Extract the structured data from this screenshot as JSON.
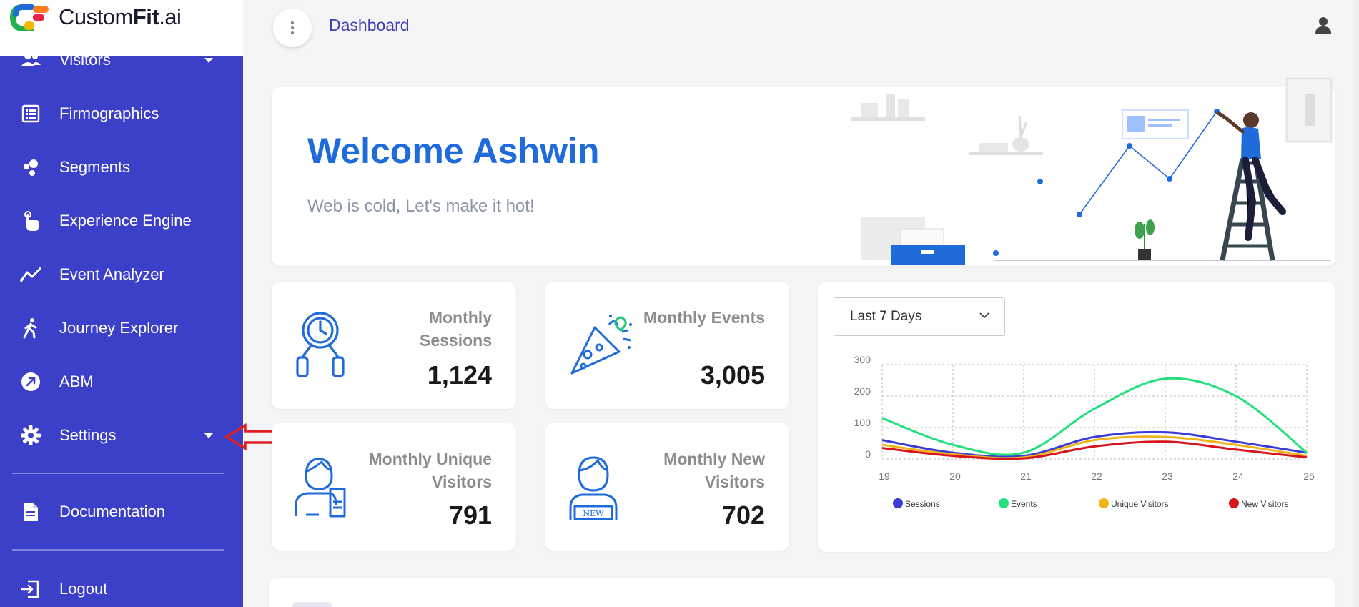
{
  "brand": {
    "name_regular": "Custom",
    "name_bold": "Fit",
    "name_suffix": ".ai"
  },
  "sidebar": {
    "items": [
      {
        "label": "Visitors",
        "icon": "visitors-icon"
      },
      {
        "label": "Firmographics",
        "icon": "list-icon"
      },
      {
        "label": "Segments",
        "icon": "segments-icon"
      },
      {
        "label": "Experience Engine",
        "icon": "touch-icon"
      },
      {
        "label": "Event Analyzer",
        "icon": "line-chart-icon"
      },
      {
        "label": "Journey Explorer",
        "icon": "walker-icon"
      },
      {
        "label": "ABM",
        "icon": "arrow-circle-icon"
      },
      {
        "label": "Settings",
        "icon": "gear-icon"
      },
      {
        "label": "Documentation",
        "icon": "document-icon"
      },
      {
        "label": "Logout",
        "icon": "logout-icon"
      }
    ]
  },
  "header": {
    "breadcrumb": "Dashboard"
  },
  "welcome": {
    "title": "Welcome Ashwin",
    "subtitle": "Web is cold, Let's make it hot!"
  },
  "stats": {
    "sessions": {
      "title_line1": "Monthly",
      "title_line2": "Sessions",
      "value": "1,124",
      "icon": "stopwatch-icon"
    },
    "events": {
      "title_line1": "Monthly Events",
      "value": "3,005",
      "icon": "party-popper-icon"
    },
    "unique": {
      "title_line1": "Monthly Unique",
      "title_line2": "Visitors",
      "value": "791",
      "icon": "visitor-ticket-icon"
    },
    "newv": {
      "title_line1": "Monthly New",
      "title_line2": "Visitors",
      "value": "702",
      "icon": "new-visitor-icon"
    }
  },
  "range": {
    "selected": "Last 7 Days"
  },
  "chart_data": {
    "type": "line",
    "x": [
      "19",
      "20",
      "21",
      "22",
      "23",
      "24",
      "25"
    ],
    "ylim": [
      0,
      300
    ],
    "yticks": [
      "300",
      "200",
      "100",
      "0"
    ],
    "grid": true,
    "legend_position": "bottom",
    "series": [
      {
        "name": "Sessions",
        "color": "#3b3bd6",
        "values": [
          60,
          20,
          10,
          70,
          85,
          55,
          20
        ]
      },
      {
        "name": "Events",
        "color": "#22e07a",
        "values": [
          130,
          45,
          20,
          160,
          255,
          200,
          20
        ]
      },
      {
        "name": "Unique Visitors",
        "color": "#f0b31a",
        "values": [
          45,
          15,
          5,
          60,
          70,
          45,
          10
        ]
      },
      {
        "name": "New Visitors",
        "color": "#d8141c",
        "values": [
          35,
          10,
          2,
          40,
          55,
          30,
          5
        ]
      }
    ]
  },
  "colors": {
    "sidebar": "#3c3fc7",
    "accent": "#1f6bdc",
    "annotation_arrow": "#e02020"
  }
}
